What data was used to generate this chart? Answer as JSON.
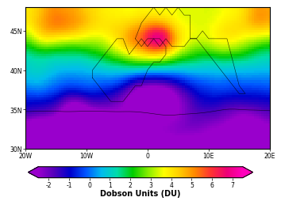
{
  "lon_min": -20,
  "lon_max": 20,
  "lat_min": 30,
  "lat_max": 48,
  "colorbar_min": -2.5,
  "colorbar_max": 7.5,
  "colorbar_ticks": [
    -2,
    -1,
    0,
    1,
    2,
    3,
    4,
    5,
    6,
    7
  ],
  "colorbar_label": "Dobson Units (DU)",
  "xlabel_ticks": [
    -20,
    -10,
    0,
    10,
    20
  ],
  "xlabel_labels": [
    "20W",
    "10W",
    "0",
    "10E",
    "20E"
  ],
  "ylabel_ticks": [
    30,
    35,
    40,
    45
  ],
  "ylabel_labels": [
    "30N",
    "35N",
    "40N",
    "45N"
  ],
  "seed": 42
}
